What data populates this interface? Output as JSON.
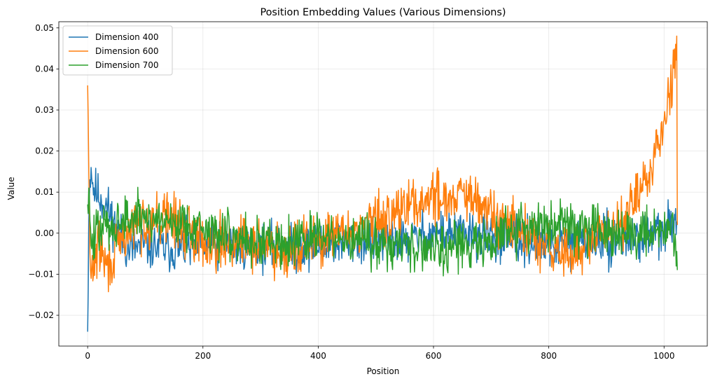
{
  "chart_data": {
    "type": "line",
    "title": "Position Embedding Values (Various Dimensions)",
    "xlabel": "Position",
    "ylabel": "Value",
    "xlim": [
      -50,
      1075
    ],
    "ylim": [
      -0.0275,
      0.0515
    ],
    "xticks": [
      0,
      200,
      400,
      600,
      800,
      1000
    ],
    "xtick_labels": [
      "0",
      "200",
      "400",
      "600",
      "800",
      "1000"
    ],
    "yticks": [
      -0.02,
      -0.01,
      0.0,
      0.01,
      0.02,
      0.03,
      0.04,
      0.05
    ],
    "ytick_labels": [
      "−0.02",
      "−0.01",
      "0.00",
      "0.01",
      "0.02",
      "0.03",
      "0.04",
      "0.05"
    ],
    "grid": true,
    "legend_position": "upper-left",
    "series": [
      {
        "name": "Dimension 400",
        "color": "#1f77b4",
        "noise": 0.0028,
        "seed": 11,
        "trend": [
          [
            0,
            -0.024
          ],
          [
            2,
            0.003
          ],
          [
            4,
            0.013
          ],
          [
            6,
            0.016
          ],
          [
            10,
            0.011
          ],
          [
            20,
            0.009
          ],
          [
            35,
            0.006
          ],
          [
            50,
            0.001
          ],
          [
            70,
            -0.004
          ],
          [
            100,
            -0.003
          ],
          [
            150,
            -0.004
          ],
          [
            200,
            -0.003
          ],
          [
            250,
            -0.003
          ],
          [
            300,
            -0.003
          ],
          [
            350,
            -0.004
          ],
          [
            400,
            -0.003
          ],
          [
            450,
            -0.002
          ],
          [
            500,
            -0.002
          ],
          [
            550,
            -0.002
          ],
          [
            600,
            0.0
          ],
          [
            650,
            0.0
          ],
          [
            700,
            -0.001
          ],
          [
            750,
            -0.002
          ],
          [
            800,
            -0.003
          ],
          [
            850,
            -0.002
          ],
          [
            900,
            -0.002
          ],
          [
            950,
            -0.001
          ],
          [
            1000,
            0.0
          ],
          [
            1015,
            0.002
          ],
          [
            1020,
            0.006
          ],
          [
            1023,
            0.002
          ]
        ]
      },
      {
        "name": "Dimension 600",
        "color": "#ff7f0e",
        "noise": 0.0032,
        "seed": 29,
        "trend": [
          [
            0,
            0.036
          ],
          [
            2,
            0.015
          ],
          [
            4,
            -0.005
          ],
          [
            6,
            -0.011
          ],
          [
            10,
            -0.007
          ],
          [
            20,
            -0.003
          ],
          [
            35,
            -0.009
          ],
          [
            50,
            -0.004
          ],
          [
            80,
            0.002
          ],
          [
            100,
            0.003
          ],
          [
            140,
            0.004
          ],
          [
            170,
            0.001
          ],
          [
            200,
            -0.002
          ],
          [
            250,
            -0.002
          ],
          [
            300,
            -0.003
          ],
          [
            350,
            -0.004
          ],
          [
            400,
            -0.002
          ],
          [
            450,
            0.0
          ],
          [
            500,
            0.003
          ],
          [
            550,
            0.006
          ],
          [
            600,
            0.009
          ],
          [
            650,
            0.009
          ],
          [
            700,
            0.005
          ],
          [
            750,
            0.0
          ],
          [
            800,
            -0.004
          ],
          [
            850,
            -0.005
          ],
          [
            880,
            -0.002
          ],
          [
            900,
            0.0
          ],
          [
            930,
            0.004
          ],
          [
            960,
            0.01
          ],
          [
            980,
            0.017
          ],
          [
            1000,
            0.028
          ],
          [
            1012,
            0.036
          ],
          [
            1020,
            0.046
          ],
          [
            1022,
            0.048
          ],
          [
            1023,
            0.002
          ]
        ]
      },
      {
        "name": "Dimension 700",
        "color": "#2ca02c",
        "noise": 0.003,
        "seed": 47,
        "trend": [
          [
            0,
            0.007
          ],
          [
            2,
            0.011
          ],
          [
            4,
            0.003
          ],
          [
            6,
            -0.003
          ],
          [
            10,
            -0.002
          ],
          [
            20,
            0.001
          ],
          [
            40,
            0.002
          ],
          [
            60,
            0.003
          ],
          [
            100,
            0.004
          ],
          [
            140,
            0.003
          ],
          [
            180,
            0.002
          ],
          [
            220,
            0.0
          ],
          [
            260,
            -0.001
          ],
          [
            300,
            -0.002
          ],
          [
            350,
            -0.002
          ],
          [
            400,
            -0.001
          ],
          [
            450,
            -0.002
          ],
          [
            500,
            -0.002
          ],
          [
            550,
            -0.003
          ],
          [
            600,
            -0.003
          ],
          [
            650,
            -0.003
          ],
          [
            700,
            -0.002
          ],
          [
            750,
            0.001
          ],
          [
            800,
            0.002
          ],
          [
            850,
            0.002
          ],
          [
            900,
            0.001
          ],
          [
            950,
            0.0
          ],
          [
            1000,
            0.001
          ],
          [
            1015,
            0.002
          ],
          [
            1020,
            -0.002
          ],
          [
            1023,
            -0.009
          ]
        ]
      }
    ]
  }
}
